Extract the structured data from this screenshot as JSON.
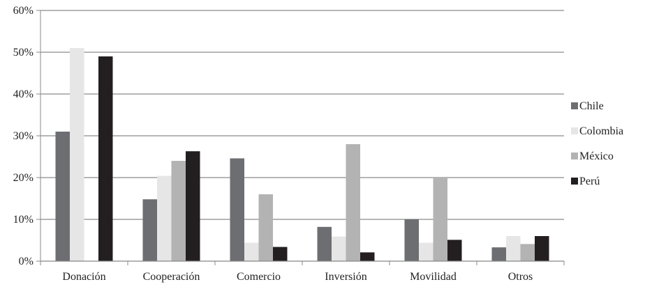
{
  "chart_data": {
    "type": "bar",
    "categories": [
      "Donación",
      "Cooperación",
      "Comercio",
      "Inversión",
      "Movilidad",
      "Otros"
    ],
    "series": [
      {
        "name": "Chile",
        "color": "#6d6e71",
        "values": [
          31,
          14.8,
          24.6,
          8.2,
          10,
          3.3
        ]
      },
      {
        "name": "Colombia",
        "color": "#e6e6e6",
        "values": [
          51,
          20.4,
          4.4,
          5.9,
          4.4,
          6
        ]
      },
      {
        "name": "México",
        "color": "#b3b3b4",
        "values": [
          0,
          24,
          16,
          28,
          20,
          4.1
        ]
      },
      {
        "name": "Perú",
        "color": "#231f20",
        "values": [
          49,
          26.3,
          3.4,
          2.1,
          5.1,
          6
        ]
      }
    ],
    "y_ticks": [
      "0%",
      "10%",
      "20%",
      "30%",
      "40%",
      "50%",
      "60%"
    ],
    "ylim": [
      0,
      60
    ],
    "grid": true,
    "legend_position": "right"
  }
}
